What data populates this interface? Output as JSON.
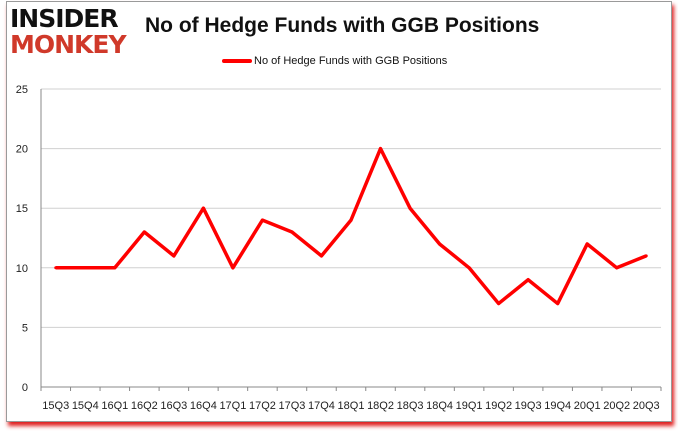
{
  "logo": {
    "line1": "INSIDER",
    "line2": "MONKEY"
  },
  "chart_data": {
    "type": "line",
    "title": "No of Hedge Funds with GGB Positions",
    "categories": [
      "15Q3",
      "15Q4",
      "16Q1",
      "16Q2",
      "16Q3",
      "16Q4",
      "17Q1",
      "17Q2",
      "17Q3",
      "17Q4",
      "18Q1",
      "18Q2",
      "18Q3",
      "18Q4",
      "19Q1",
      "19Q2",
      "19Q3",
      "19Q4",
      "20Q1",
      "20Q2",
      "20Q3"
    ],
    "series": [
      {
        "name": "No of Hedge Funds with GGB Positions",
        "color": "#ff0000",
        "values": [
          10,
          10,
          10,
          13,
          11,
          15,
          10,
          14,
          13,
          11,
          14,
          20,
          15,
          12,
          10,
          7,
          9,
          7,
          12,
          10,
          11
        ]
      }
    ],
    "ylim": [
      0,
      25
    ],
    "yticks": [
      0,
      5,
      10,
      15,
      20,
      25
    ],
    "grid": true,
    "legend": "top"
  }
}
